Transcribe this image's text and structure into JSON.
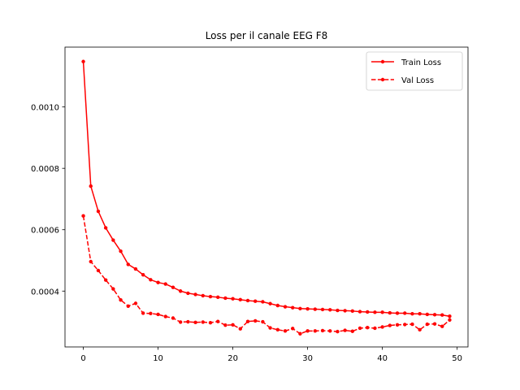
{
  "chart_data": {
    "type": "line",
    "title": "Loss per il canale EEG F8",
    "xlabel": "",
    "ylabel": "",
    "xlim": [
      -2.45,
      51.45
    ],
    "ylim": [
      0.000218,
      0.001195
    ],
    "x_ticks": [
      0,
      10,
      20,
      30,
      40,
      50
    ],
    "y_ticks": [
      0.0004,
      0.0006,
      0.0008,
      0.001
    ],
    "x_tick_labels": [
      "0",
      "10",
      "20",
      "30",
      "40",
      "50"
    ],
    "y_tick_labels": [
      "0.0004",
      "0.0006",
      "0.0008",
      "0.0010"
    ],
    "grid": false,
    "legend_position": "top-right",
    "x": [
      0,
      1,
      2,
      3,
      4,
      5,
      6,
      7,
      8,
      9,
      10,
      11,
      12,
      13,
      14,
      15,
      16,
      17,
      18,
      19,
      20,
      21,
      22,
      23,
      24,
      25,
      26,
      27,
      28,
      29,
      30,
      31,
      32,
      33,
      34,
      35,
      36,
      37,
      38,
      39,
      40,
      41,
      42,
      43,
      44,
      45,
      46,
      47,
      48,
      49
    ],
    "series": [
      {
        "name": "Train Loss",
        "color": "#ff0000",
        "linestyle": "solid",
        "marker": "circle",
        "values": [
          0.001148,
          0.000742,
          0.00066,
          0.000606,
          0.000566,
          0.00053,
          0.000487,
          0.000472,
          0.000453,
          0.000437,
          0.000428,
          0.000423,
          0.000412,
          0.0004,
          0.000393,
          0.000389,
          0.000385,
          0.000382,
          0.00038,
          0.000377,
          0.000375,
          0.000372,
          0.000369,
          0.000367,
          0.000365,
          0.000359,
          0.000353,
          0.000349,
          0.000346,
          0.000343,
          0.000342,
          0.000341,
          0.00034,
          0.000339,
          0.000337,
          0.000336,
          0.000335,
          0.000333,
          0.000332,
          0.000331,
          0.000331,
          0.000329,
          0.000328,
          0.000328,
          0.000326,
          0.000326,
          0.000324,
          0.000323,
          0.000322,
          0.000318
        ]
      },
      {
        "name": "Val Loss",
        "color": "#ff0000",
        "linestyle": "dashed",
        "marker": "circle",
        "values": [
          0.000645,
          0.000496,
          0.000467,
          0.000436,
          0.000407,
          0.000371,
          0.000351,
          0.00036,
          0.000328,
          0.000327,
          0.000324,
          0.000317,
          0.000312,
          0.000299,
          0.0003,
          0.000298,
          0.000299,
          0.000297,
          0.000301,
          0.000289,
          0.00029,
          0.000277,
          0.000301,
          0.000303,
          0.0003,
          0.00028,
          0.000274,
          0.00027,
          0.000278,
          0.000261,
          0.00027,
          0.00027,
          0.000271,
          0.00027,
          0.000268,
          0.000272,
          0.000269,
          0.000279,
          0.000281,
          0.000279,
          0.000283,
          0.000288,
          0.00029,
          0.000291,
          0.000292,
          0.000274,
          0.000292,
          0.000293,
          0.000285,
          0.000306
        ]
      }
    ]
  }
}
